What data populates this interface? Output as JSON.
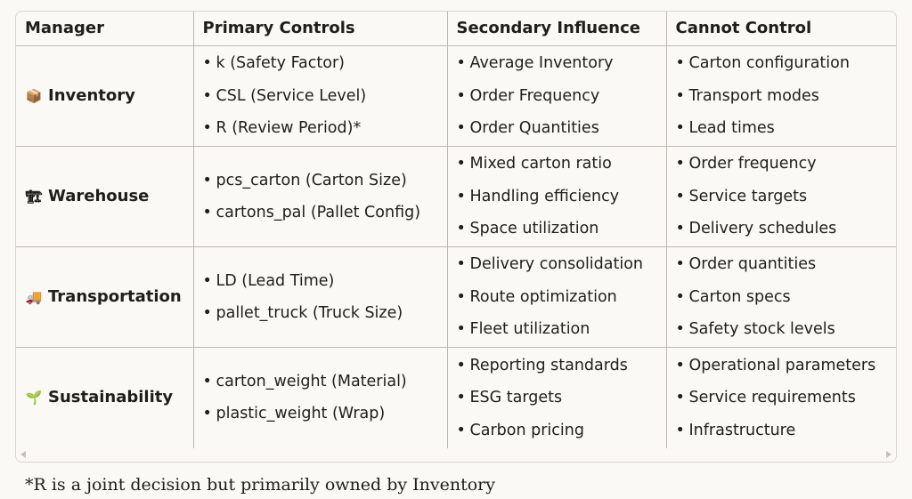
{
  "table": {
    "headers": [
      "Manager",
      "Primary Controls",
      "Secondary Influence",
      "Cannot Control"
    ],
    "rows": [
      {
        "icon": "package-icon",
        "icon_glyph": "📦",
        "manager": "Inventory",
        "primary": [
          "k (Safety Factor)",
          "CSL (Service Level)",
          "R (Review Period)*"
        ],
        "secondary": [
          "Average Inventory",
          "Order Frequency",
          "Order Quantities"
        ],
        "cannot": [
          "Carton configuration",
          "Transport modes",
          "Lead times"
        ]
      },
      {
        "icon": "crane-icon",
        "icon_glyph": "🏗",
        "manager": "Warehouse",
        "primary": [
          "pcs_carton (Carton Size)",
          "cartons_pal (Pallet Config)"
        ],
        "secondary": [
          "Mixed carton ratio",
          "Handling efficiency",
          "Space utilization"
        ],
        "cannot": [
          "Order frequency",
          "Service targets",
          "Delivery schedules"
        ]
      },
      {
        "icon": "truck-icon",
        "icon_glyph": "🚚",
        "manager": "Transportation",
        "primary": [
          "LD (Lead Time)",
          "pallet_truck (Truck Size)"
        ],
        "secondary": [
          "Delivery consolidation",
          "Route optimization",
          "Fleet utilization"
        ],
        "cannot": [
          "Order quantities",
          "Carton specs",
          "Safety stock levels"
        ]
      },
      {
        "icon": "seedling-icon",
        "icon_glyph": "🌱",
        "manager": "Sustainability",
        "primary": [
          "carton_weight (Material)",
          "plastic_weight (Wrap)"
        ],
        "secondary": [
          "Reporting standards",
          "ESG targets",
          "Carbon pricing"
        ],
        "cannot": [
          "Operational parameters",
          "Service requirements",
          "Infrastructure"
        ]
      }
    ]
  },
  "footnote": "*R is a joint decision but primarily owned by Inventory"
}
